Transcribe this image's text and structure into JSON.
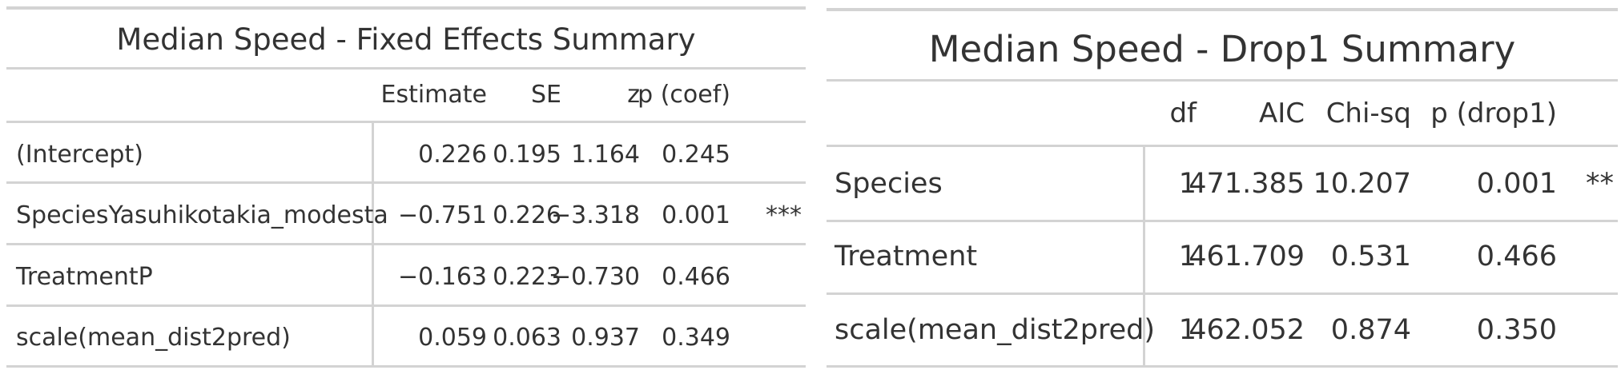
{
  "fixed_effects": {
    "title": "Median Speed - Fixed Effects Summary",
    "columns": {
      "estimate": "Estimate",
      "se": "SE",
      "z": "z",
      "p": "p (coef)"
    },
    "rows": [
      {
        "term": "(Intercept)",
        "estimate": "0.226",
        "se": "0.195",
        "z": "1.164",
        "p": "0.245",
        "sig": ""
      },
      {
        "term": "SpeciesYasuhikotakia_modesta",
        "estimate": "−0.751",
        "se": "0.226",
        "z": "−3.318",
        "p": "0.001",
        "sig": "***"
      },
      {
        "term": "TreatmentP",
        "estimate": "−0.163",
        "se": "0.223",
        "z": "−0.730",
        "p": "0.466",
        "sig": ""
      },
      {
        "term": "scale(mean_dist2pred)",
        "estimate": "0.059",
        "se": "0.063",
        "z": "0.937",
        "p": "0.349",
        "sig": ""
      }
    ]
  },
  "drop1": {
    "title": "Median Speed - Drop1 Summary",
    "columns": {
      "df": "df",
      "aic": "AIC",
      "chisq": "Chi-sq",
      "p": "p (drop1)"
    },
    "rows": [
      {
        "term": "Species",
        "df": "1",
        "aic": "471.385",
        "chisq": "10.207",
        "p": "0.001",
        "sig": "**"
      },
      {
        "term": "Treatment",
        "df": "1",
        "aic": "461.709",
        "chisq": "0.531",
        "p": "0.466",
        "sig": ""
      },
      {
        "term": "scale(mean_dist2pred)",
        "df": "1",
        "aic": "462.052",
        "chisq": "0.874",
        "p": "0.350",
        "sig": ""
      }
    ]
  }
}
